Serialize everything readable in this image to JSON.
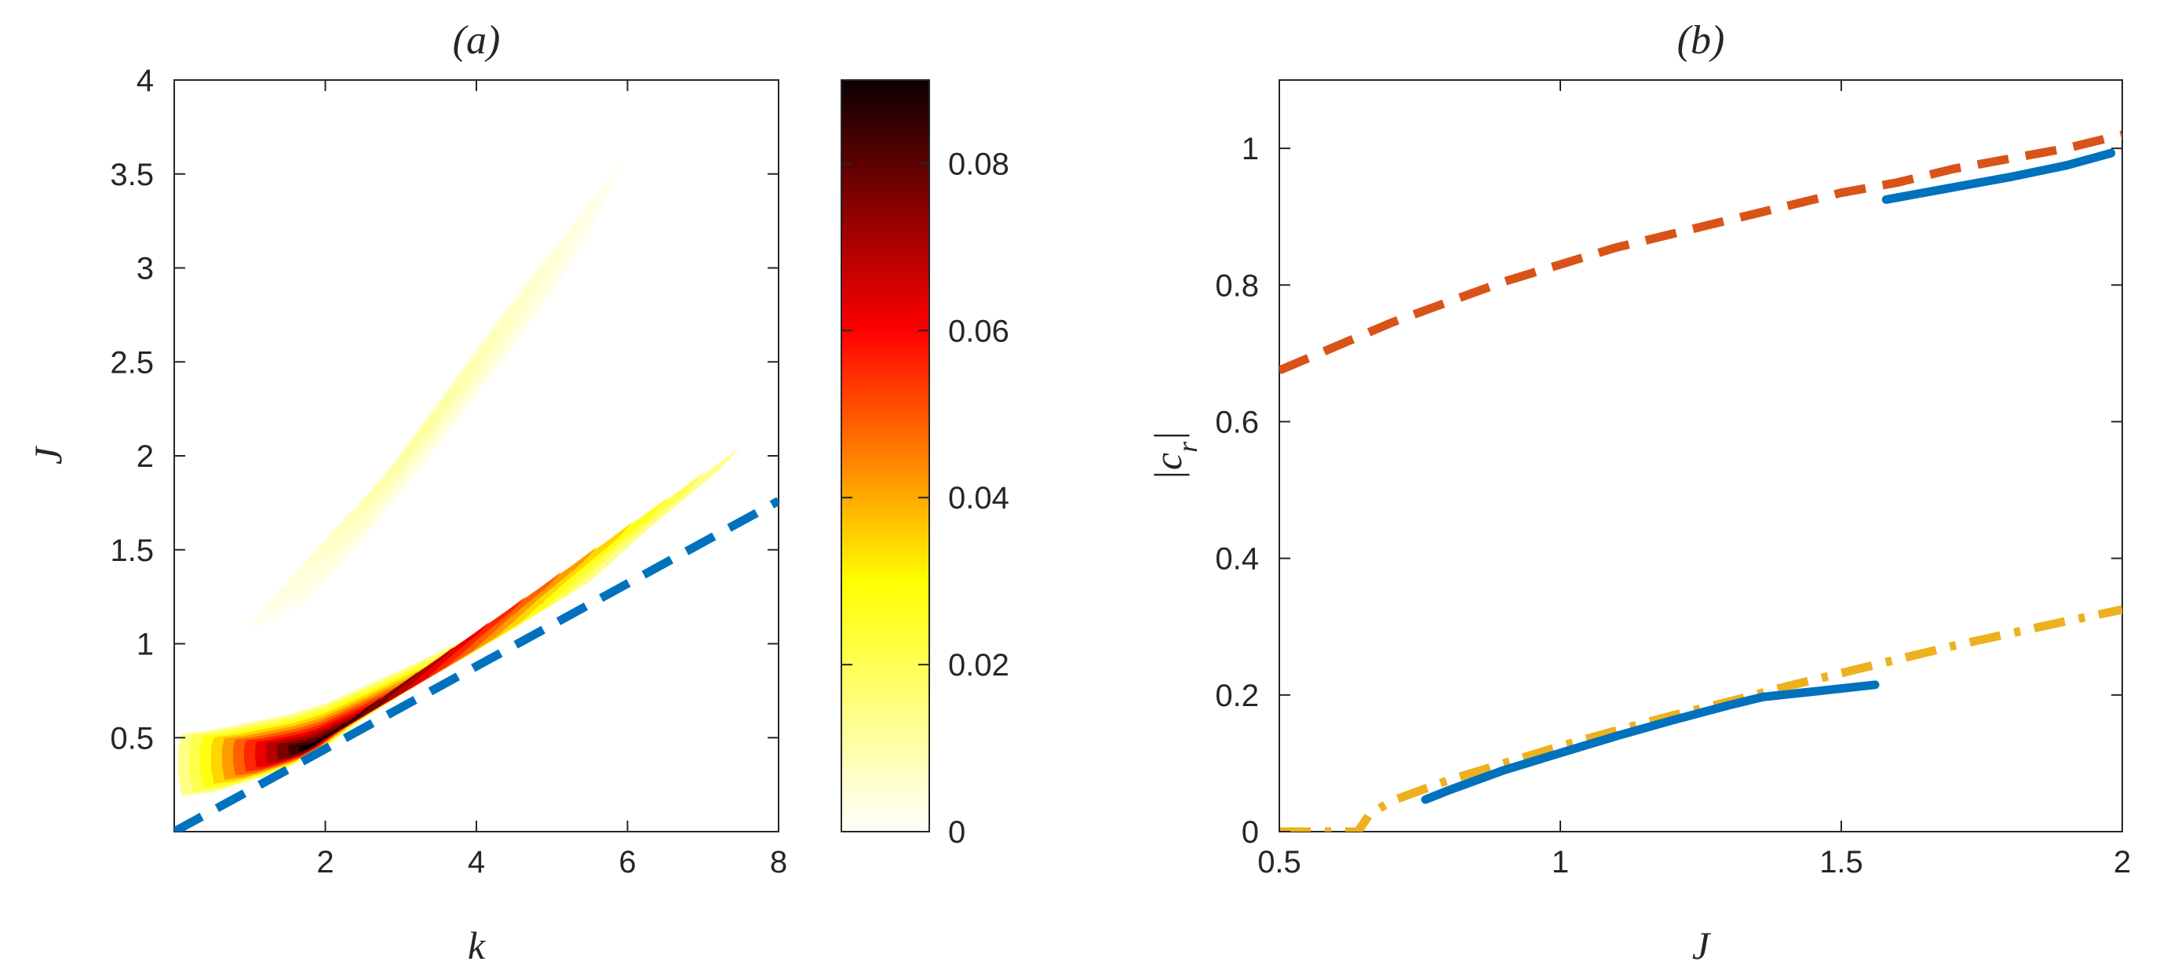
{
  "chart_data": [
    {
      "type": "heatmap",
      "title": "(a)",
      "xlabel": "k",
      "ylabel": "J",
      "xlim": [
        0,
        8
      ],
      "ylim": [
        0,
        4
      ],
      "xticks": [
        2,
        4,
        6,
        8
      ],
      "xtick_labels": [
        "2",
        "4",
        "6",
        "8"
      ],
      "yticks": [
        0.5,
        1,
        1.5,
        2,
        2.5,
        3,
        3.5,
        4
      ],
      "ytick_labels": [
        "0.5",
        "1",
        "1.5",
        "2",
        "2.5",
        "3",
        "3.5",
        "4"
      ],
      "colormap": "hot",
      "colorbar": {
        "range": [
          0,
          0.09
        ],
        "ticks": [
          0,
          0.02,
          0.04,
          0.06,
          0.08
        ],
        "tick_labels": [
          "0",
          "0.02",
          "0.04",
          "0.06",
          "0.08"
        ],
        "placement": "right"
      },
      "regions": [
        {
          "id": "upper-tongue",
          "peak_value": 0.012,
          "outline": [
            [
              1.0,
              1.12
            ],
            [
              1.6,
              1.33
            ],
            [
              2.5,
              1.75
            ],
            [
              3.5,
              2.3
            ],
            [
              4.5,
              2.85
            ],
            [
              5.5,
              3.35
            ],
            [
              6.0,
              3.6
            ],
            [
              5.4,
              3.1
            ],
            [
              4.5,
              2.58
            ],
            [
              3.5,
              2.05
            ],
            [
              2.5,
              1.55
            ],
            [
              1.7,
              1.2
            ],
            [
              1.1,
              1.08
            ],
            [
              0.95,
              1.1
            ]
          ]
        },
        {
          "id": "lower-tongue",
          "peak_value": 0.09,
          "peak_location": [
            1.8,
            0.45
          ],
          "outline": [
            [
              0.1,
              0.52
            ],
            [
              0.5,
              0.54
            ],
            [
              1.0,
              0.58
            ],
            [
              1.5,
              0.62
            ],
            [
              2.0,
              0.68
            ],
            [
              3.0,
              0.86
            ],
            [
              4.0,
              1.05
            ],
            [
              5.0,
              1.3
            ],
            [
              6.0,
              1.62
            ],
            [
              7.0,
              1.9
            ],
            [
              7.5,
              2.05
            ],
            [
              7.2,
              1.92
            ],
            [
              6.3,
              1.62
            ],
            [
              5.5,
              1.33
            ],
            [
              4.5,
              1.08
            ],
            [
              3.5,
              0.85
            ],
            [
              2.5,
              0.6
            ],
            [
              2.0,
              0.45
            ],
            [
              1.5,
              0.34
            ],
            [
              1.0,
              0.27
            ],
            [
              0.5,
              0.21
            ],
            [
              0.1,
              0.19
            ],
            [
              0.05,
              0.3
            ],
            [
              0.05,
              0.45
            ]
          ]
        }
      ],
      "series": [
        {
          "style": "dashed",
          "color": "#0072BD",
          "x": [
            0,
            8
          ],
          "y": [
            0,
            1.76
          ]
        }
      ]
    },
    {
      "type": "line",
      "title": "(b)",
      "xlabel": "J",
      "ylabel": "|c_r|",
      "xlim": [
        0.5,
        2
      ],
      "ylim": [
        0,
        1.1
      ],
      "xticks": [
        0.5,
        1,
        1.5,
        2
      ],
      "xtick_labels": [
        "0.5",
        "1",
        "1.5",
        "2"
      ],
      "yticks": [
        0,
        0.2,
        0.4,
        0.6,
        0.8,
        1
      ],
      "ytick_labels": [
        "0",
        "0.2",
        "0.4",
        "0.6",
        "0.8",
        "1"
      ],
      "grid": false,
      "series": [
        {
          "style": "dashed",
          "color": "#D95319",
          "x": [
            0.5,
            0.6,
            0.7,
            0.8,
            0.9,
            1.0,
            1.1,
            1.2,
            1.3,
            1.4,
            1.5,
            1.6,
            1.7,
            1.8,
            1.9,
            2.0
          ],
          "y": [
            0.675,
            0.71,
            0.745,
            0.775,
            0.805,
            0.83,
            0.855,
            0.875,
            0.895,
            0.915,
            0.935,
            0.95,
            0.97,
            0.985,
            1.0,
            1.02
          ]
        },
        {
          "style": "solid",
          "color": "#0072BD",
          "x": [
            1.58,
            1.7,
            1.8,
            1.9,
            1.98
          ],
          "y": [
            0.925,
            0.943,
            0.958,
            0.975,
            0.993
          ]
        },
        {
          "style": "dash-dot",
          "color": "#EDB120",
          "x": [
            0.5,
            0.64,
            0.66,
            0.7,
            0.8,
            0.9,
            1.0,
            1.1,
            1.2,
            1.3,
            1.4,
            1.5,
            1.6,
            1.7,
            1.8,
            1.9,
            2.0
          ],
          "y": [
            0.0,
            0.0,
            0.025,
            0.045,
            0.075,
            0.1,
            0.125,
            0.148,
            0.17,
            0.19,
            0.212,
            0.232,
            0.252,
            0.272,
            0.29,
            0.308,
            0.325
          ]
        },
        {
          "style": "solid",
          "color": "#0072BD",
          "x": [
            0.76,
            0.8,
            0.9,
            1.0,
            1.1,
            1.2,
            1.3,
            1.36,
            1.45,
            1.56
          ],
          "y": [
            0.047,
            0.06,
            0.09,
            0.115,
            0.14,
            0.163,
            0.185,
            0.197,
            0.205,
            0.215
          ]
        }
      ]
    }
  ]
}
